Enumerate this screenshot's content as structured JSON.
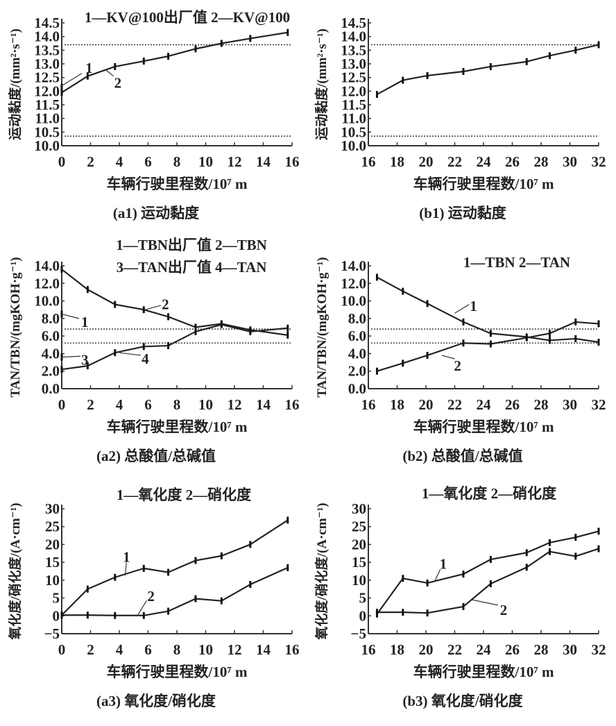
{
  "chart_data": [
    {
      "id": "a1",
      "type": "line",
      "caption": "(a1) 运动黏度",
      "xlabel": "车辆行驶里程数/10⁷ m",
      "ylabel": "运动黏度/(mm²·s⁻¹)",
      "xlim": [
        0,
        16
      ],
      "ylim": [
        10.0,
        14.5
      ],
      "xticks": [
        "0",
        "2",
        "4",
        "6",
        "8",
        "10",
        "12",
        "14",
        "16"
      ],
      "yticks": [
        "10.0",
        "10.5",
        "11.0",
        "11.5",
        "12.0",
        "12.5",
        "13.0",
        "13.5",
        "14.0",
        "14.5"
      ],
      "legend": [
        "1—KV@100出厂值 2—KV@100"
      ],
      "reference_lines": [
        13.7,
        10.35
      ],
      "series": [
        {
          "name": "KV@100出厂值",
          "x": [
            0
          ],
          "y": [
            12.15
          ]
        },
        {
          "name": "KV@100",
          "x": [
            0,
            1.8,
            3.7,
            5.7,
            7.4,
            9.3,
            11.1,
            13.1,
            15.7
          ],
          "y": [
            11.95,
            12.55,
            12.9,
            13.1,
            13.28,
            13.55,
            13.75,
            13.93,
            14.15
          ]
        }
      ],
      "annotations": [
        {
          "text": "1",
          "at": [
            1.9,
            12.85
          ],
          "from": [
            0,
            12.2
          ],
          "to": [
            1.4,
            12.65
          ]
        },
        {
          "text": "2",
          "at": [
            3.9,
            12.3
          ],
          "from": [
            3.0,
            12.8
          ],
          "to": [
            3.6,
            12.55
          ]
        }
      ]
    },
    {
      "id": "b1",
      "type": "line",
      "caption": "(b1) 运动黏度",
      "xlabel": "车辆行驶里程数/10⁷ m",
      "ylabel": "运动黏度/(mm²·s⁻¹)",
      "xlim": [
        16,
        32
      ],
      "ylim": [
        10.0,
        14.5
      ],
      "xticks": [
        "16",
        "18",
        "20",
        "22",
        "24",
        "26",
        "28",
        "30",
        "32"
      ],
      "yticks": [
        "10.0",
        "10.5",
        "11.0",
        "11.5",
        "12.0",
        "12.5",
        "13.0",
        "13.5",
        "14.0",
        "14.5"
      ],
      "legend": [],
      "reference_lines": [
        13.7,
        10.35
      ],
      "series": [
        {
          "name": "KV@100",
          "x": [
            16.6,
            18.4,
            20.1,
            22.6,
            24.5,
            27.0,
            28.6,
            30.4,
            32
          ],
          "y": [
            11.88,
            12.4,
            12.57,
            12.72,
            12.9,
            13.08,
            13.3,
            13.5,
            13.7
          ]
        }
      ],
      "annotations": []
    },
    {
      "id": "a2",
      "type": "line",
      "caption": "(a2) 总酸值/总碱值",
      "xlabel": "车辆行驶里程数/10⁷ m",
      "ylabel": "TAN/TBN/(mgKOH·g⁻¹)",
      "xlim": [
        0,
        16
      ],
      "ylim": [
        0,
        14
      ],
      "xticks": [
        "0",
        "2",
        "4",
        "6",
        "8",
        "10",
        "12",
        "14",
        "16"
      ],
      "yticks": [
        "0.0",
        "2.0",
        "4.0",
        "6.0",
        "8.0",
        "10.0",
        "12.0",
        "14.0"
      ],
      "legend": [
        "1—TBN出厂值  2—TBN",
        "3—TAN出厂值  4—TAN"
      ],
      "reference_lines": [
        6.8,
        5.2
      ],
      "series": [
        {
          "name": "TBN出厂值",
          "x": [
            0
          ],
          "y": [
            8.5
          ]
        },
        {
          "name": "TBN",
          "x": [
            0,
            1.8,
            3.7,
            5.7,
            7.4,
            9.3,
            11.1,
            13.1,
            15.7
          ],
          "y": [
            13.6,
            11.3,
            9.6,
            9.0,
            8.2,
            7.0,
            7.4,
            6.7,
            6.1
          ]
        },
        {
          "name": "TAN出厂值",
          "x": [
            0
          ],
          "y": [
            3.6
          ]
        },
        {
          "name": "TAN",
          "x": [
            0,
            1.8,
            3.7,
            5.7,
            7.4,
            9.3,
            11.1,
            13.1,
            15.7
          ],
          "y": [
            2.2,
            2.6,
            4.1,
            4.8,
            4.9,
            6.5,
            7.3,
            6.5,
            6.9
          ]
        }
      ],
      "annotations": [
        {
          "text": "1",
          "at": [
            1.6,
            7.6
          ],
          "from": [
            0,
            8.5
          ],
          "to": [
            1.2,
            8.0
          ]
        },
        {
          "text": "2",
          "at": [
            7.2,
            9.6
          ],
          "from": [
            5.8,
            9.0
          ],
          "to": [
            6.9,
            9.5
          ]
        },
        {
          "text": "3",
          "at": [
            1.6,
            3.3
          ],
          "from": [
            0,
            3.6
          ],
          "to": [
            1.3,
            3.7
          ]
        },
        {
          "text": "4",
          "at": [
            5.8,
            3.4
          ],
          "from": [
            4.0,
            4.1
          ],
          "to": [
            5.5,
            3.8
          ]
        }
      ]
    },
    {
      "id": "b2",
      "type": "line",
      "caption": "(b2) 总酸值/总碱值",
      "xlabel": "车辆行驶里程数/10⁷ m",
      "ylabel": "TAN/TBN/(mgKOH·g⁻¹)",
      "xlim": [
        16,
        32
      ],
      "ylim": [
        0,
        14
      ],
      "xticks": [
        "16",
        "18",
        "20",
        "22",
        "24",
        "26",
        "28",
        "30",
        "32"
      ],
      "yticks": [
        "0.0",
        "2.0",
        "4.0",
        "6.0",
        "8.0",
        "10.0",
        "12.0",
        "14.0"
      ],
      "legend": [
        "1—TBN   2—TAN"
      ],
      "reference_lines": [
        6.8,
        5.2
      ],
      "series": [
        {
          "name": "TBN",
          "x": [
            16.6,
            18.4,
            20.1,
            22.6,
            24.5,
            27.0,
            28.6,
            30.4,
            32
          ],
          "y": [
            12.7,
            11.1,
            9.7,
            7.6,
            6.3,
            5.9,
            5.5,
            5.7,
            5.3
          ]
        },
        {
          "name": "TAN",
          "x": [
            16.6,
            18.4,
            20.1,
            22.6,
            24.5,
            27.0,
            28.6,
            30.4,
            32
          ],
          "y": [
            2.0,
            2.9,
            3.8,
            5.2,
            5.1,
            5.8,
            6.3,
            7.6,
            7.4
          ]
        }
      ],
      "annotations": [
        {
          "text": "1",
          "at": [
            23.3,
            9.4
          ],
          "from": [
            22.0,
            8.6
          ],
          "to": [
            23.0,
            9.6
          ]
        },
        {
          "text": "2",
          "at": [
            22.2,
            2.6
          ],
          "from": [
            21.1,
            3.8
          ],
          "to": [
            22.0,
            3.4
          ]
        }
      ]
    },
    {
      "id": "a3",
      "type": "line",
      "caption": "(a3) 氧化度/硝化度",
      "xlabel": "车辆行驶里程数/10⁷ m",
      "ylabel": "氧化度/硝化度/(A·cm⁻¹)",
      "xlim": [
        0,
        16
      ],
      "ylim": [
        -5,
        30
      ],
      "xticks": [
        "0",
        "2",
        "4",
        "6",
        "8",
        "10",
        "12",
        "14",
        "16"
      ],
      "yticks": [
        "-5",
        "0",
        "5",
        "10",
        "15",
        "20",
        "25",
        "30"
      ],
      "legend": [
        "1—氧化度   2—硝化度"
      ],
      "reference_lines": [],
      "series": [
        {
          "name": "氧化度",
          "x": [
            0,
            1.8,
            3.7,
            5.7,
            7.4,
            9.3,
            11.1,
            13.1,
            15.7
          ],
          "y": [
            0.2,
            7.5,
            10.8,
            13.3,
            12.2,
            15.5,
            16.8,
            20.0,
            26.8
          ]
        },
        {
          "name": "硝化度",
          "x": [
            0,
            1.8,
            3.7,
            5.7,
            7.4,
            9.3,
            11.1,
            13.1,
            15.7
          ],
          "y": [
            0.2,
            0.2,
            0.1,
            0.1,
            1.3,
            4.8,
            4.2,
            8.8,
            13.5
          ]
        }
      ],
      "annotations": [
        {
          "text": "1",
          "at": [
            4.5,
            16.5
          ],
          "from": [
            4.4,
            11.3
          ],
          "to": [
            4.5,
            15.0
          ]
        },
        {
          "text": "2",
          "at": [
            6.2,
            5.5
          ],
          "from": [
            5.3,
            0.3
          ],
          "to": [
            5.9,
            4.3
          ]
        }
      ]
    },
    {
      "id": "b3",
      "type": "line",
      "caption": "(b3) 氧化度/硝化度",
      "xlabel": "车辆行驶里程数/10⁷ m",
      "ylabel": "氧化度/硝化度/(A·cm⁻¹)",
      "xlim": [
        16,
        32
      ],
      "ylim": [
        -5,
        30
      ],
      "xticks": [
        "16",
        "18",
        "20",
        "22",
        "24",
        "26",
        "28",
        "30",
        "32"
      ],
      "yticks": [
        "-5",
        "0",
        "5",
        "10",
        "15",
        "20",
        "25",
        "30"
      ],
      "legend": [
        "1—氧化度   2—硝化度"
      ],
      "reference_lines": [],
      "series": [
        {
          "name": "氧化度",
          "x": [
            16.6,
            18.4,
            20.1,
            22.6,
            24.5,
            27.0,
            28.6,
            30.4,
            32
          ],
          "y": [
            0.5,
            10.5,
            9.2,
            11.7,
            15.8,
            17.7,
            20.5,
            22.0,
            23.7
          ]
        },
        {
          "name": "硝化度",
          "x": [
            16.6,
            18.4,
            20.1,
            22.6,
            24.5,
            27.0,
            28.6,
            30.4,
            32
          ],
          "y": [
            1.0,
            1.0,
            0.8,
            2.6,
            9.0,
            13.6,
            18.0,
            16.7,
            18.8
          ]
        }
      ],
      "annotations": [
        {
          "text": "1",
          "at": [
            21.2,
            14.5
          ],
          "from": [
            20.6,
            9.6
          ],
          "to": [
            21.0,
            13.0
          ]
        },
        {
          "text": "2",
          "at": [
            25.4,
            1.6
          ],
          "from": [
            23.2,
            4.5
          ],
          "to": [
            25.0,
            3.0
          ]
        }
      ]
    }
  ]
}
